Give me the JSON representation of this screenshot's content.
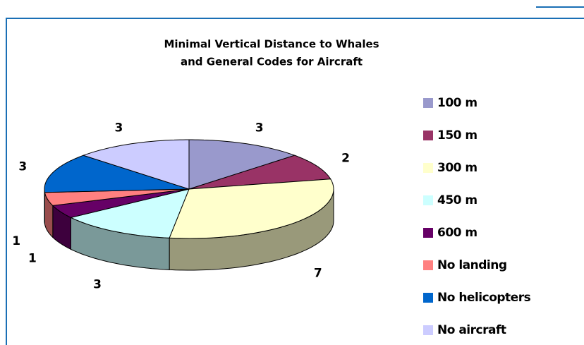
{
  "chart_data": {
    "type": "pie",
    "title": [
      "Minimal Vertical Distance to Whales",
      "and General Codes for Aircraft"
    ],
    "categories": [
      "100 m",
      "150 m",
      "300 m",
      "450 m",
      "600 m",
      "No landing",
      "No helicopters",
      "No aircraft"
    ],
    "values": [
      3,
      2,
      7,
      3,
      1,
      1,
      3,
      3
    ],
    "colors": [
      "#9999cc",
      "#993366",
      "#ffffcc",
      "#ccffff",
      "#660066",
      "#ff8080",
      "#0066cc",
      "#ccccff"
    ],
    "legend": "right"
  }
}
